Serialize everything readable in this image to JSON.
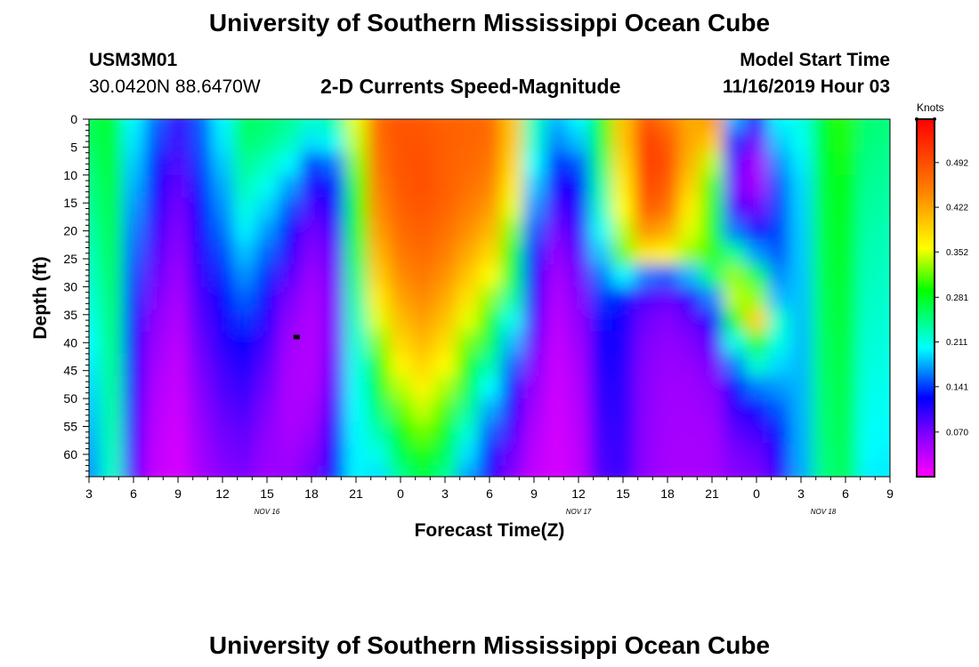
{
  "header": {
    "title": "University of Southern Mississippi Ocean Cube",
    "station_id": "USM3M01",
    "coordinates": "30.0420N 88.6470W",
    "product": "2-D Currents Speed-Magnitude",
    "model_label": "Model Start Time",
    "model_time": "11/16/2019 Hour 03"
  },
  "footer": {
    "title": "University of Southern Mississippi Ocean Cube"
  },
  "chart_data": {
    "type": "heatmap",
    "title": "2-D Currents Speed-Magnitude",
    "xlabel": "Forecast Time(Z)",
    "ylabel": "Depth (ft)",
    "colorbar_label": "Knots",
    "x_tick_labels": [
      "3",
      "6",
      "9",
      "12",
      "15",
      "18",
      "21",
      "0",
      "3",
      "6",
      "9",
      "12",
      "15",
      "18",
      "21",
      "0",
      "3",
      "6",
      "9"
    ],
    "x_range_hours": [
      0,
      54
    ],
    "date_labels": [
      {
        "text": "NOV 16",
        "hour": 12
      },
      {
        "text": "NOV 17",
        "hour": 33
      },
      {
        "text": "NOV 18",
        "hour": 49.5
      }
    ],
    "y_ticks": [
      0,
      5,
      10,
      15,
      20,
      25,
      30,
      35,
      40,
      45,
      50,
      55,
      60
    ],
    "ylim": [
      0,
      64
    ],
    "colorbar_ticks": [
      "0.070",
      "0.141",
      "0.211",
      "0.281",
      "0.352",
      "0.422",
      "0.492"
    ],
    "colorbar_tick_values": [
      0.07,
      0.141,
      0.211,
      0.281,
      0.352,
      0.422,
      0.492
    ],
    "color_range": [
      0.0,
      0.56
    ],
    "colors": {
      "magenta": "#ff00ff",
      "purple": "#8000ff",
      "blue": "#0000ff",
      "cyan": "#00ffff",
      "green": "#00ff00",
      "yellow": "#ffff00",
      "orange": "#ff8000",
      "red": "#ff0000"
    },
    "marker": {
      "hour": 14,
      "depth": 39
    },
    "grid_hours_step": 1.5,
    "grid_depth_step": 4,
    "speed_grid": [
      [
        0.262,
        0.28,
        0.2,
        0.154,
        0.102,
        0.15,
        0.2,
        0.26,
        0.252,
        0.24,
        0.22,
        0.23,
        0.351,
        0.47,
        0.488,
        0.483,
        0.475,
        0.472,
        0.468,
        0.4,
        0.226,
        0.179,
        0.2,
        0.284,
        0.4,
        0.488,
        0.457,
        0.42,
        0.43,
        0.176,
        0.112,
        0.2,
        0.21,
        0.28,
        0.3,
        0.25,
        0.249
      ],
      [
        0.257,
        0.278,
        0.194,
        0.145,
        0.097,
        0.147,
        0.195,
        0.253,
        0.243,
        0.227,
        0.193,
        0.206,
        0.342,
        0.467,
        0.488,
        0.487,
        0.477,
        0.472,
        0.467,
        0.397,
        0.219,
        0.164,
        0.183,
        0.272,
        0.397,
        0.507,
        0.482,
        0.42,
        0.395,
        0.137,
        0.072,
        0.185,
        0.205,
        0.278,
        0.298,
        0.248,
        0.245
      ],
      [
        0.25,
        0.276,
        0.186,
        0.131,
        0.088,
        0.14,
        0.185,
        0.24,
        0.224,
        0.2,
        0.14,
        0.16,
        0.325,
        0.46,
        0.486,
        0.49,
        0.478,
        0.468,
        0.458,
        0.387,
        0.203,
        0.135,
        0.15,
        0.251,
        0.383,
        0.506,
        0.49,
        0.41,
        0.34,
        0.082,
        0.047,
        0.165,
        0.196,
        0.275,
        0.295,
        0.243,
        0.24
      ],
      [
        0.244,
        0.273,
        0.178,
        0.118,
        0.08,
        0.132,
        0.175,
        0.227,
        0.206,
        0.172,
        0.109,
        0.13,
        0.308,
        0.45,
        0.482,
        0.49,
        0.477,
        0.462,
        0.446,
        0.373,
        0.185,
        0.109,
        0.125,
        0.235,
        0.37,
        0.495,
        0.48,
        0.39,
        0.31,
        0.07,
        0.05,
        0.15,
        0.19,
        0.272,
        0.292,
        0.239,
        0.236
      ],
      [
        0.238,
        0.27,
        0.17,
        0.106,
        0.072,
        0.124,
        0.166,
        0.213,
        0.188,
        0.147,
        0.09,
        0.107,
        0.291,
        0.44,
        0.476,
        0.486,
        0.472,
        0.452,
        0.43,
        0.352,
        0.168,
        0.089,
        0.108,
        0.221,
        0.358,
        0.48,
        0.46,
        0.37,
        0.3,
        0.09,
        0.075,
        0.145,
        0.188,
        0.27,
        0.288,
        0.235,
        0.232
      ],
      [
        0.232,
        0.266,
        0.162,
        0.095,
        0.065,
        0.116,
        0.156,
        0.198,
        0.17,
        0.124,
        0.075,
        0.09,
        0.275,
        0.426,
        0.466,
        0.478,
        0.462,
        0.438,
        0.41,
        0.326,
        0.151,
        0.072,
        0.095,
        0.205,
        0.34,
        0.435,
        0.42,
        0.35,
        0.3,
        0.16,
        0.12,
        0.145,
        0.186,
        0.268,
        0.284,
        0.231,
        0.228
      ],
      [
        0.226,
        0.262,
        0.154,
        0.085,
        0.058,
        0.108,
        0.145,
        0.183,
        0.152,
        0.104,
        0.063,
        0.078,
        0.26,
        0.41,
        0.454,
        0.468,
        0.45,
        0.42,
        0.386,
        0.298,
        0.134,
        0.058,
        0.083,
        0.185,
        0.318,
        0.375,
        0.365,
        0.33,
        0.305,
        0.24,
        0.17,
        0.15,
        0.185,
        0.266,
        0.281,
        0.228,
        0.225
      ],
      [
        0.22,
        0.258,
        0.146,
        0.076,
        0.052,
        0.1,
        0.135,
        0.168,
        0.136,
        0.086,
        0.053,
        0.072,
        0.246,
        0.392,
        0.44,
        0.456,
        0.436,
        0.4,
        0.36,
        0.268,
        0.118,
        0.047,
        0.073,
        0.158,
        0.2,
        0.16,
        0.15,
        0.18,
        0.25,
        0.33,
        0.26,
        0.165,
        0.184,
        0.264,
        0.278,
        0.225,
        0.222
      ],
      [
        0.214,
        0.254,
        0.138,
        0.068,
        0.046,
        0.092,
        0.125,
        0.153,
        0.12,
        0.07,
        0.046,
        0.068,
        0.234,
        0.372,
        0.424,
        0.442,
        0.42,
        0.378,
        0.33,
        0.238,
        0.103,
        0.04,
        0.064,
        0.14,
        0.13,
        0.09,
        0.08,
        0.105,
        0.165,
        0.34,
        0.33,
        0.18,
        0.183,
        0.262,
        0.276,
        0.222,
        0.219
      ],
      [
        0.208,
        0.25,
        0.13,
        0.06,
        0.041,
        0.085,
        0.115,
        0.139,
        0.106,
        0.058,
        0.042,
        0.068,
        0.224,
        0.35,
        0.406,
        0.426,
        0.402,
        0.352,
        0.298,
        0.208,
        0.089,
        0.035,
        0.057,
        0.128,
        0.115,
        0.075,
        0.065,
        0.08,
        0.11,
        0.28,
        0.39,
        0.22,
        0.182,
        0.26,
        0.274,
        0.219,
        0.216
      ],
      [
        0.202,
        0.246,
        0.122,
        0.053,
        0.036,
        0.078,
        0.106,
        0.125,
        0.094,
        0.05,
        0.04,
        0.07,
        0.216,
        0.326,
        0.386,
        0.408,
        0.382,
        0.324,
        0.264,
        0.18,
        0.077,
        0.031,
        0.051,
        0.12,
        0.11,
        0.068,
        0.058,
        0.065,
        0.085,
        0.21,
        0.3,
        0.21,
        0.181,
        0.258,
        0.272,
        0.216,
        0.213
      ],
      [
        0.196,
        0.242,
        0.115,
        0.047,
        0.032,
        0.071,
        0.097,
        0.112,
        0.083,
        0.045,
        0.04,
        0.075,
        0.21,
        0.3,
        0.364,
        0.388,
        0.36,
        0.295,
        0.232,
        0.154,
        0.066,
        0.028,
        0.046,
        0.113,
        0.107,
        0.064,
        0.054,
        0.057,
        0.07,
        0.16,
        0.22,
        0.19,
        0.18,
        0.256,
        0.27,
        0.213,
        0.21
      ],
      [
        0.19,
        0.238,
        0.108,
        0.042,
        0.029,
        0.065,
        0.089,
        0.1,
        0.074,
        0.043,
        0.042,
        0.082,
        0.205,
        0.276,
        0.34,
        0.366,
        0.336,
        0.267,
        0.203,
        0.13,
        0.056,
        0.026,
        0.042,
        0.107,
        0.105,
        0.062,
        0.051,
        0.052,
        0.06,
        0.125,
        0.16,
        0.17,
        0.179,
        0.254,
        0.268,
        0.21,
        0.207
      ],
      [
        0.184,
        0.234,
        0.101,
        0.038,
        0.026,
        0.059,
        0.081,
        0.09,
        0.066,
        0.043,
        0.047,
        0.092,
        0.202,
        0.252,
        0.316,
        0.343,
        0.311,
        0.241,
        0.176,
        0.109,
        0.048,
        0.024,
        0.039,
        0.102,
        0.103,
        0.061,
        0.049,
        0.049,
        0.054,
        0.1,
        0.12,
        0.15,
        0.178,
        0.252,
        0.266,
        0.207,
        0.204
      ],
      [
        0.178,
        0.23,
        0.095,
        0.035,
        0.024,
        0.054,
        0.074,
        0.081,
        0.06,
        0.045,
        0.054,
        0.104,
        0.2,
        0.23,
        0.29,
        0.32,
        0.286,
        0.216,
        0.152,
        0.091,
        0.041,
        0.023,
        0.036,
        0.097,
        0.101,
        0.06,
        0.048,
        0.047,
        0.05,
        0.082,
        0.095,
        0.13,
        0.177,
        0.25,
        0.264,
        0.204,
        0.201
      ],
      [
        0.172,
        0.226,
        0.089,
        0.032,
        0.022,
        0.05,
        0.068,
        0.074,
        0.055,
        0.049,
        0.063,
        0.117,
        0.199,
        0.21,
        0.265,
        0.297,
        0.262,
        0.193,
        0.131,
        0.076,
        0.036,
        0.022,
        0.034,
        0.093,
        0.099,
        0.059,
        0.047,
        0.046,
        0.048,
        0.07,
        0.078,
        0.115,
        0.176,
        0.248,
        0.262,
        0.201,
        0.198
      ],
      [
        0.166,
        0.222,
        0.084,
        0.03,
        0.021,
        0.046,
        0.062,
        0.068,
        0.051,
        0.054,
        0.073,
        0.13,
        0.199,
        0.192,
        0.24,
        0.274,
        0.24,
        0.172,
        0.113,
        0.064,
        0.032,
        0.022,
        0.033,
        0.089,
        0.097,
        0.058,
        0.046,
        0.045,
        0.047,
        0.062,
        0.068,
        0.102,
        0.175,
        0.246,
        0.26,
        0.198,
        0.195
      ]
    ]
  }
}
